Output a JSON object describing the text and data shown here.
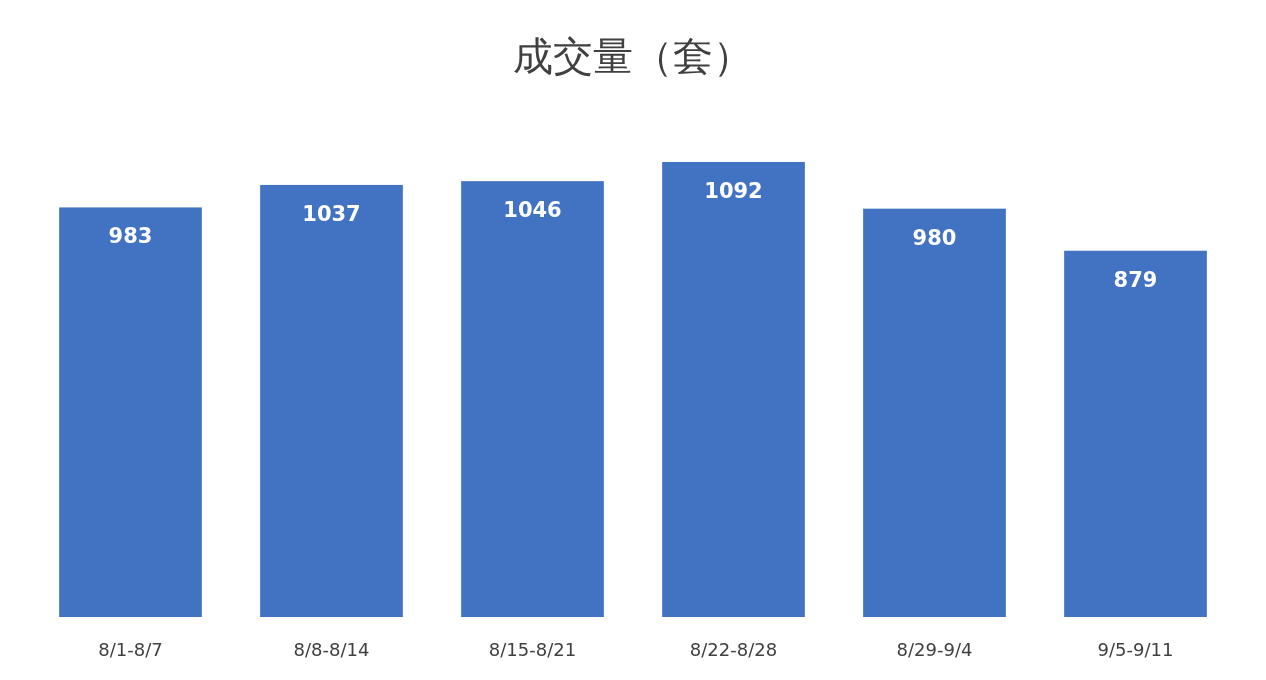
{
  "chart_data": {
    "type": "bar",
    "title": "成交量（套）",
    "categories": [
      "8/1-8/7",
      "8/8-8/14",
      "8/15-8/21",
      "8/22-8/28",
      "8/29-9/4",
      "9/5-9/11"
    ],
    "values": [
      983,
      1037,
      1046,
      1092,
      980,
      879
    ],
    "color": "#4273c2",
    "data_labels": true,
    "tick_labels": "x"
  }
}
